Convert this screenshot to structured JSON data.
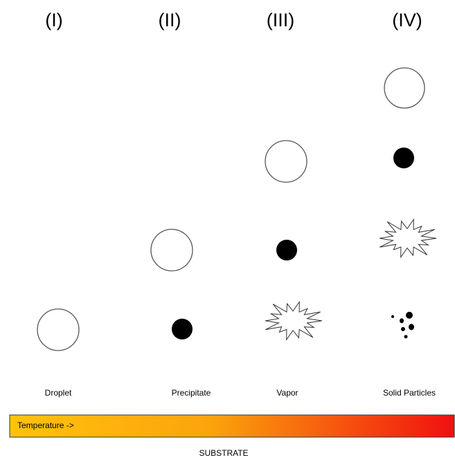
{
  "columns": [
    "(I)",
    "(II)",
    "(III)",
    "(IV)"
  ],
  "states": [
    "Droplet",
    "Precipitate",
    "Vapor",
    "Solid Particles"
  ],
  "temperature_bar": {
    "label": "Temperature ->"
  },
  "substrate": "SUBSTRATE"
}
